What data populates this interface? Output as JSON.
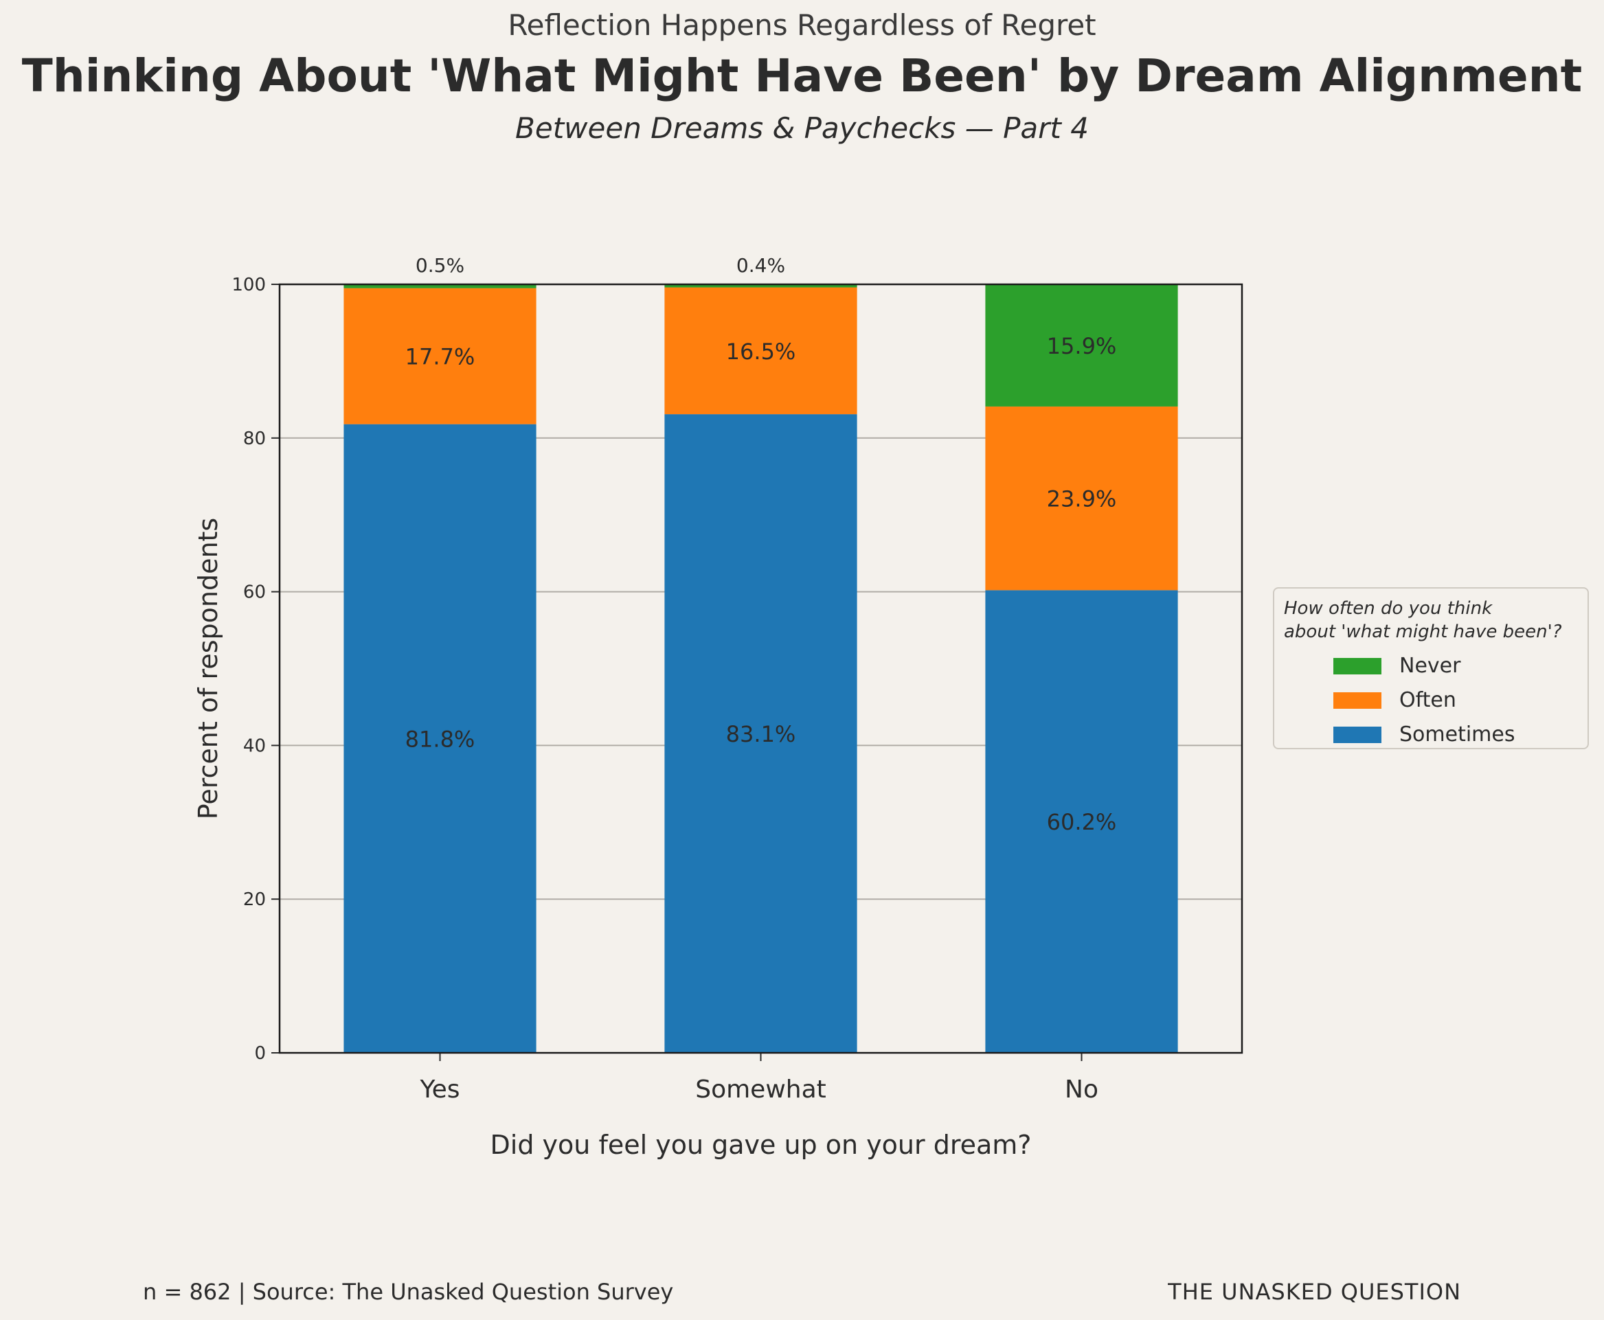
{
  "header": {
    "kicker": "Reflection Happens Regardless of Regret",
    "title": "Thinking About 'What Might Have Been' by Dream Alignment",
    "subtitle": "Between Dreams & Paychecks — Part 4"
  },
  "chart_data": {
    "type": "bar",
    "stacked": true,
    "xlabel": "Did you feel you gave up on your dream?",
    "ylabel": "Percent of respondents",
    "ylim": [
      0,
      100
    ],
    "yticks": [
      0,
      20,
      40,
      60,
      80,
      100
    ],
    "grid": "horizontal",
    "legend_placement": "right",
    "categories": [
      "Yes",
      "Somewhat",
      "No"
    ],
    "series": [
      {
        "name": "Sometimes",
        "color": "#1f77b4",
        "values": [
          81.8,
          83.1,
          60.2
        ],
        "labels": [
          "81.8%",
          "83.1%",
          "60.2%"
        ]
      },
      {
        "name": "Often",
        "color": "#ff7f0e",
        "values": [
          17.7,
          16.5,
          23.9
        ],
        "labels": [
          "17.7%",
          "16.5%",
          "23.9%"
        ]
      },
      {
        "name": "Never",
        "color": "#2ca02c",
        "values": [
          0.5,
          0.4,
          15.9
        ],
        "labels": [
          "0.5%",
          "0.4%",
          "15.9%"
        ]
      }
    ]
  },
  "legend": {
    "title": "How often do you think\nabout 'what might have been'?",
    "items": [
      {
        "label": "Never",
        "color": "#2ca02c"
      },
      {
        "label": "Often",
        "color": "#ff7f0e"
      },
      {
        "label": "Sometimes",
        "color": "#1f77b4"
      }
    ]
  },
  "footer": {
    "source": "n = 862 | Source: The Unasked Question Survey",
    "brand": "THE UNASKED QUESTION"
  }
}
